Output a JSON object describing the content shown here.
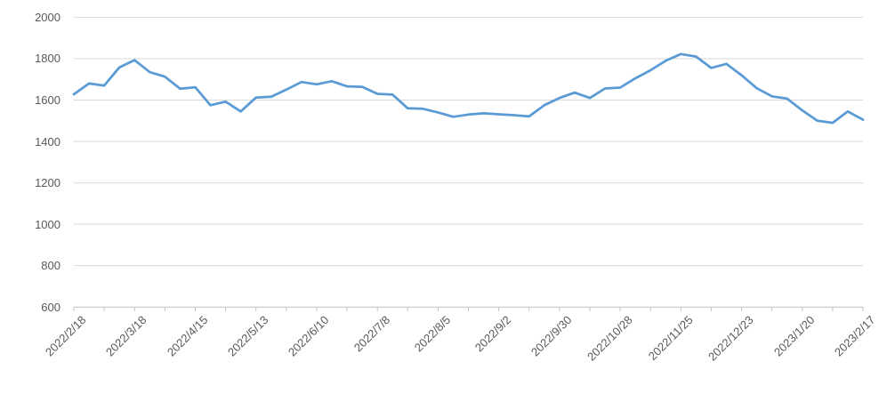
{
  "chart_data": {
    "type": "line",
    "title": "",
    "legend": "none",
    "grid": "horizontal",
    "n_points": 53,
    "x_label_interval": 4,
    "x_minor_tick_interval": 2,
    "x_tick_labels": [
      "2022/2/18",
      "2022/3/18",
      "2022/4/15",
      "2022/5/13",
      "2022/6/10",
      "2022/7/8",
      "2022/8/5",
      "2022/9/2",
      "2022/9/30",
      "2022/10/28",
      "2022/11/25",
      "2022/12/23",
      "2023/1/20",
      "2023/2/17"
    ],
    "series": [
      {
        "name": "price",
        "values": [
          1628,
          1680,
          1670,
          1758,
          1793,
          1735,
          1713,
          1655,
          1662,
          1575,
          1592,
          1545,
          1612,
          1616,
          1650,
          1687,
          1676,
          1691,
          1666,
          1664,
          1630,
          1626,
          1560,
          1558,
          1540,
          1519,
          1530,
          1536,
          1531,
          1527,
          1521,
          1575,
          1610,
          1636,
          1610,
          1656,
          1660,
          1705,
          1744,
          1790,
          1822,
          1810,
          1755,
          1775,
          1720,
          1657,
          1618,
          1607,
          1550,
          1500,
          1490,
          1545,
          1505
        ]
      }
    ],
    "ylim": [
      600,
      2000
    ],
    "y_ticks": [
      600,
      800,
      1000,
      1200,
      1400,
      1600,
      1800,
      2000
    ],
    "colors": {
      "line": "#5B9BD5",
      "gridline": "#D9D9D9",
      "axis": "#BFBFBF",
      "label": "#595959",
      "background": "#FFFFFF"
    }
  }
}
